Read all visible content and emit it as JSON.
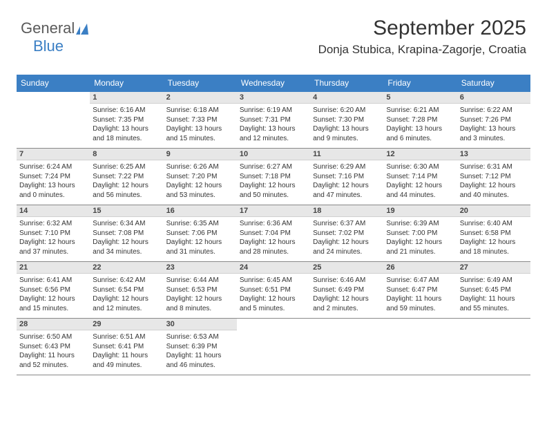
{
  "brand": {
    "part1": "General",
    "part2": "Blue"
  },
  "title": "September 2025",
  "location": "Donja Stubica, Krapina-Zagorje, Croatia",
  "colors": {
    "header_bg": "#3b7fc4",
    "header_text": "#ffffff",
    "daynum_bg": "#e7e7e7",
    "border": "#888888",
    "brand_gray": "#5a5a5a",
    "brand_blue": "#3b7fc4"
  },
  "weekdays": [
    "Sunday",
    "Monday",
    "Tuesday",
    "Wednesday",
    "Thursday",
    "Friday",
    "Saturday"
  ],
  "weeks": [
    [
      {
        "n": "",
        "sr": "",
        "ss": "",
        "dl": ""
      },
      {
        "n": "1",
        "sr": "Sunrise: 6:16 AM",
        "ss": "Sunset: 7:35 PM",
        "dl": "Daylight: 13 hours and 18 minutes."
      },
      {
        "n": "2",
        "sr": "Sunrise: 6:18 AM",
        "ss": "Sunset: 7:33 PM",
        "dl": "Daylight: 13 hours and 15 minutes."
      },
      {
        "n": "3",
        "sr": "Sunrise: 6:19 AM",
        "ss": "Sunset: 7:31 PM",
        "dl": "Daylight: 13 hours and 12 minutes."
      },
      {
        "n": "4",
        "sr": "Sunrise: 6:20 AM",
        "ss": "Sunset: 7:30 PM",
        "dl": "Daylight: 13 hours and 9 minutes."
      },
      {
        "n": "5",
        "sr": "Sunrise: 6:21 AM",
        "ss": "Sunset: 7:28 PM",
        "dl": "Daylight: 13 hours and 6 minutes."
      },
      {
        "n": "6",
        "sr": "Sunrise: 6:22 AM",
        "ss": "Sunset: 7:26 PM",
        "dl": "Daylight: 13 hours and 3 minutes."
      }
    ],
    [
      {
        "n": "7",
        "sr": "Sunrise: 6:24 AM",
        "ss": "Sunset: 7:24 PM",
        "dl": "Daylight: 13 hours and 0 minutes."
      },
      {
        "n": "8",
        "sr": "Sunrise: 6:25 AM",
        "ss": "Sunset: 7:22 PM",
        "dl": "Daylight: 12 hours and 56 minutes."
      },
      {
        "n": "9",
        "sr": "Sunrise: 6:26 AM",
        "ss": "Sunset: 7:20 PM",
        "dl": "Daylight: 12 hours and 53 minutes."
      },
      {
        "n": "10",
        "sr": "Sunrise: 6:27 AM",
        "ss": "Sunset: 7:18 PM",
        "dl": "Daylight: 12 hours and 50 minutes."
      },
      {
        "n": "11",
        "sr": "Sunrise: 6:29 AM",
        "ss": "Sunset: 7:16 PM",
        "dl": "Daylight: 12 hours and 47 minutes."
      },
      {
        "n": "12",
        "sr": "Sunrise: 6:30 AM",
        "ss": "Sunset: 7:14 PM",
        "dl": "Daylight: 12 hours and 44 minutes."
      },
      {
        "n": "13",
        "sr": "Sunrise: 6:31 AM",
        "ss": "Sunset: 7:12 PM",
        "dl": "Daylight: 12 hours and 40 minutes."
      }
    ],
    [
      {
        "n": "14",
        "sr": "Sunrise: 6:32 AM",
        "ss": "Sunset: 7:10 PM",
        "dl": "Daylight: 12 hours and 37 minutes."
      },
      {
        "n": "15",
        "sr": "Sunrise: 6:34 AM",
        "ss": "Sunset: 7:08 PM",
        "dl": "Daylight: 12 hours and 34 minutes."
      },
      {
        "n": "16",
        "sr": "Sunrise: 6:35 AM",
        "ss": "Sunset: 7:06 PM",
        "dl": "Daylight: 12 hours and 31 minutes."
      },
      {
        "n": "17",
        "sr": "Sunrise: 6:36 AM",
        "ss": "Sunset: 7:04 PM",
        "dl": "Daylight: 12 hours and 28 minutes."
      },
      {
        "n": "18",
        "sr": "Sunrise: 6:37 AM",
        "ss": "Sunset: 7:02 PM",
        "dl": "Daylight: 12 hours and 24 minutes."
      },
      {
        "n": "19",
        "sr": "Sunrise: 6:39 AM",
        "ss": "Sunset: 7:00 PM",
        "dl": "Daylight: 12 hours and 21 minutes."
      },
      {
        "n": "20",
        "sr": "Sunrise: 6:40 AM",
        "ss": "Sunset: 6:58 PM",
        "dl": "Daylight: 12 hours and 18 minutes."
      }
    ],
    [
      {
        "n": "21",
        "sr": "Sunrise: 6:41 AM",
        "ss": "Sunset: 6:56 PM",
        "dl": "Daylight: 12 hours and 15 minutes."
      },
      {
        "n": "22",
        "sr": "Sunrise: 6:42 AM",
        "ss": "Sunset: 6:54 PM",
        "dl": "Daylight: 12 hours and 12 minutes."
      },
      {
        "n": "23",
        "sr": "Sunrise: 6:44 AM",
        "ss": "Sunset: 6:53 PM",
        "dl": "Daylight: 12 hours and 8 minutes."
      },
      {
        "n": "24",
        "sr": "Sunrise: 6:45 AM",
        "ss": "Sunset: 6:51 PM",
        "dl": "Daylight: 12 hours and 5 minutes."
      },
      {
        "n": "25",
        "sr": "Sunrise: 6:46 AM",
        "ss": "Sunset: 6:49 PM",
        "dl": "Daylight: 12 hours and 2 minutes."
      },
      {
        "n": "26",
        "sr": "Sunrise: 6:47 AM",
        "ss": "Sunset: 6:47 PM",
        "dl": "Daylight: 11 hours and 59 minutes."
      },
      {
        "n": "27",
        "sr": "Sunrise: 6:49 AM",
        "ss": "Sunset: 6:45 PM",
        "dl": "Daylight: 11 hours and 55 minutes."
      }
    ],
    [
      {
        "n": "28",
        "sr": "Sunrise: 6:50 AM",
        "ss": "Sunset: 6:43 PM",
        "dl": "Daylight: 11 hours and 52 minutes."
      },
      {
        "n": "29",
        "sr": "Sunrise: 6:51 AM",
        "ss": "Sunset: 6:41 PM",
        "dl": "Daylight: 11 hours and 49 minutes."
      },
      {
        "n": "30",
        "sr": "Sunrise: 6:53 AM",
        "ss": "Sunset: 6:39 PM",
        "dl": "Daylight: 11 hours and 46 minutes."
      },
      {
        "n": "",
        "sr": "",
        "ss": "",
        "dl": ""
      },
      {
        "n": "",
        "sr": "",
        "ss": "",
        "dl": ""
      },
      {
        "n": "",
        "sr": "",
        "ss": "",
        "dl": ""
      },
      {
        "n": "",
        "sr": "",
        "ss": "",
        "dl": ""
      }
    ]
  ]
}
